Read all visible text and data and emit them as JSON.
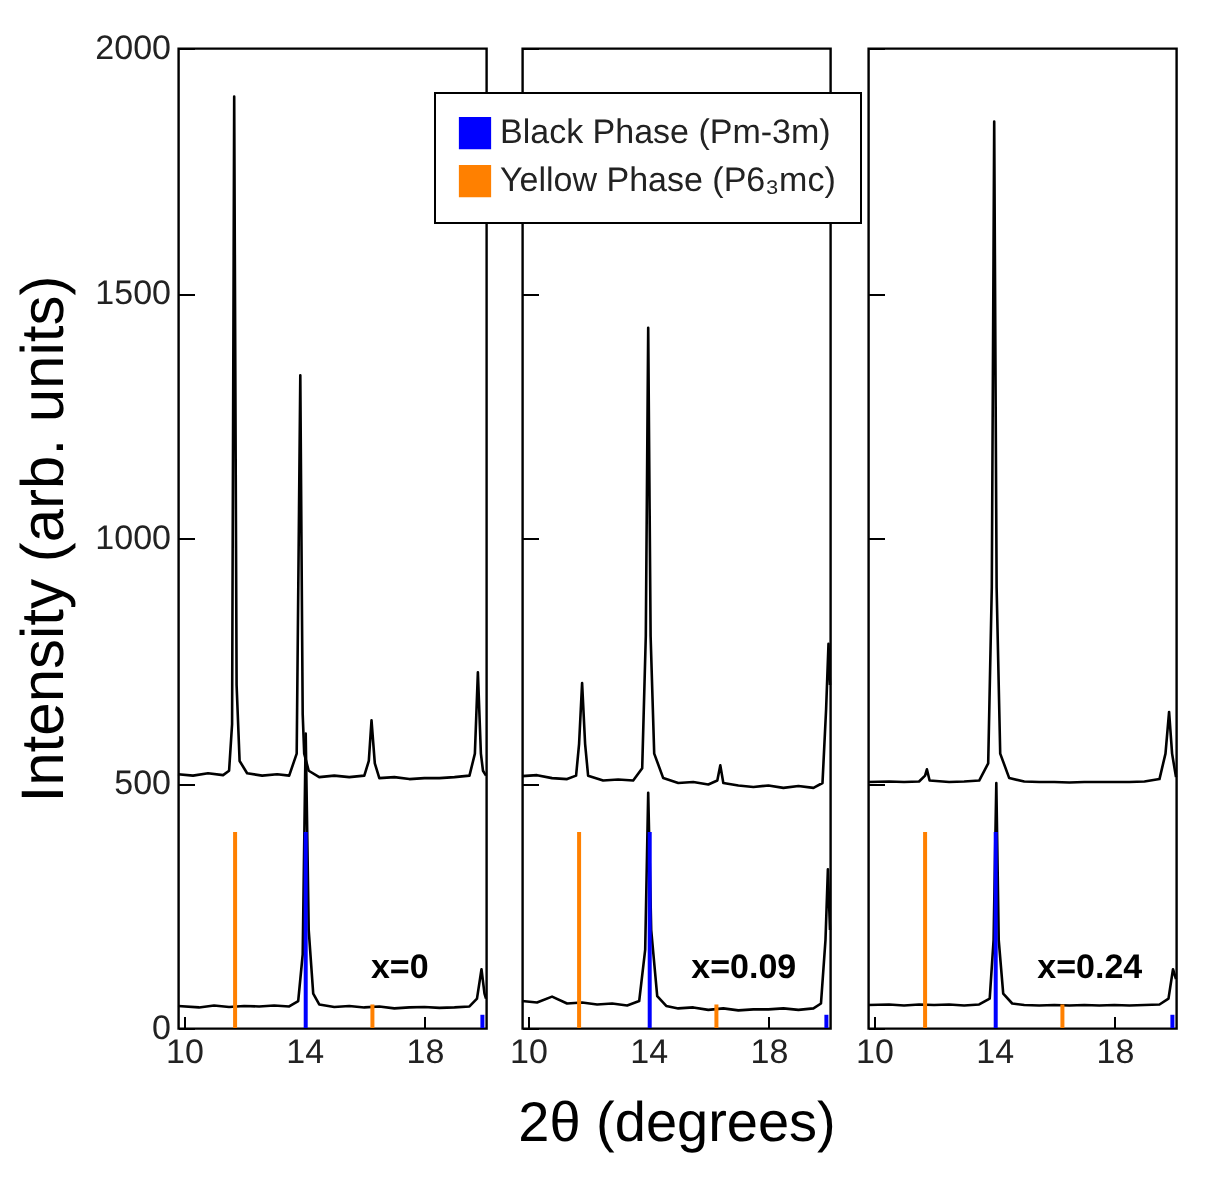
{
  "chart_data": [
    {
      "type": "line",
      "ylabel": "Intensity (arb. units)",
      "annotations": [
        "x=0"
      ],
      "legend": "top",
      "xlim": [
        9.8,
        20.05
      ],
      "xticks": [
        10,
        14,
        18
      ],
      "ylim": [
        0,
        2000
      ],
      "yticks": [
        0,
        500,
        1000,
        1500,
        2000
      ],
      "series": [
        {
          "color": "#000000",
          "x": [
            9.8,
            10.3,
            10.8,
            11.3,
            11.5,
            11.6,
            11.67,
            11.75,
            11.85,
            12.1,
            12.6,
            13.1,
            13.5,
            13.75,
            13.87,
            13.95,
            14.0,
            14.15,
            14.5,
            15.0,
            15.5,
            16.0,
            16.15,
            16.24,
            16.35,
            16.5,
            17.0,
            17.5,
            18.0,
            18.5,
            19.0,
            19.5,
            19.68,
            19.78,
            19.88,
            19.95,
            20.05
          ],
          "values": [
            518,
            515,
            520,
            516,
            525,
            620,
            1901,
            700,
            545,
            520,
            515,
            518,
            515,
            560,
            1332,
            640,
            560,
            525,
            512,
            515,
            512,
            515,
            545,
            628,
            540,
            510,
            512,
            508,
            510,
            510,
            512,
            515,
            560,
            726,
            560,
            525,
            515
          ]
        },
        {
          "color": "#000000",
          "x": [
            9.8,
            10.5,
            11.0,
            11.5,
            12.0,
            12.5,
            13.0,
            13.5,
            13.8,
            13.95,
            14.05,
            14.15,
            14.3,
            14.5,
            15.0,
            15.5,
            16.0,
            16.5,
            17.0,
            17.5,
            18.0,
            18.5,
            19.0,
            19.5,
            19.75,
            19.9,
            20.0,
            20.05
          ],
          "values": [
            45,
            42,
            46,
            43,
            45,
            44,
            46,
            44,
            55,
            150,
            601,
            200,
            70,
            48,
            43,
            45,
            42,
            44,
            40,
            42,
            43,
            41,
            42,
            44,
            60,
            120,
            70,
            60
          ]
        },
        {
          "type": "bar",
          "name": "Black Phase (Pm-3m)",
          "color": "#0000ff",
          "x": [
            14.05,
            19.93
          ],
          "values": [
            400,
            27
          ]
        },
        {
          "type": "bar",
          "name": "Yellow Phase (P6₃mc)",
          "color": "#ff8000",
          "x": [
            11.7,
            16.27
          ],
          "values": [
            400,
            48
          ]
        }
      ]
    },
    {
      "type": "line",
      "xlabel": "2θ (degrees)",
      "annotations": [
        "x=0.09"
      ],
      "tick_labels": "x",
      "xlim": [
        9.8,
        20.05
      ],
      "xticks": [
        10,
        14,
        18
      ],
      "ylim": [
        0,
        2000
      ],
      "yticks": [
        0,
        500,
        1000,
        1500,
        2000
      ],
      "series": [
        {
          "color": "#000000",
          "x": [
            9.8,
            10.3,
            10.8,
            11.3,
            11.6,
            11.7,
            11.8,
            11.9,
            12.0,
            12.5,
            13.0,
            13.5,
            13.8,
            13.92,
            14.0,
            14.08,
            14.2,
            14.5,
            15.0,
            15.5,
            16.0,
            16.3,
            16.4,
            16.5,
            17.0,
            17.5,
            18.0,
            18.5,
            19.0,
            19.5,
            19.8,
            19.92,
            20.0,
            20.05
          ],
          "values": [
            514,
            516,
            510,
            508,
            515,
            580,
            704,
            580,
            515,
            505,
            507,
            505,
            530,
            800,
            1429,
            800,
            560,
            510,
            500,
            502,
            497,
            505,
            536,
            500,
            495,
            492,
            495,
            490,
            494,
            490,
            500,
            650,
            784,
            700
          ]
        },
        {
          "color": "#000000",
          "x": [
            9.8,
            10.3,
            10.8,
            11.3,
            11.8,
            12.3,
            12.8,
            13.3,
            13.7,
            13.9,
            14.0,
            14.1,
            14.3,
            14.6,
            15.0,
            15.5,
            16.0,
            16.5,
            17.0,
            17.5,
            18.0,
            18.5,
            19.0,
            19.5,
            19.75,
            19.9,
            19.98,
            20.05
          ],
          "values": [
            55,
            52,
            64,
            50,
            52,
            48,
            50,
            46,
            55,
            160,
            480,
            200,
            65,
            45,
            40,
            42,
            37,
            40,
            36,
            38,
            38,
            40,
            37,
            40,
            50,
            180,
            324,
            200
          ]
        },
        {
          "type": "bar",
          "color": "#0000ff",
          "x": [
            14.05,
            19.93
          ],
          "values": [
            400,
            27
          ]
        },
        {
          "type": "bar",
          "color": "#ff8000",
          "x": [
            11.7,
            16.27
          ],
          "values": [
            400,
            48
          ]
        }
      ]
    },
    {
      "type": "line",
      "annotations": [
        "x=0.24"
      ],
      "tick_labels": "x",
      "xlim": [
        9.8,
        20.05
      ],
      "xticks": [
        10,
        14,
        18
      ],
      "ylim": [
        0,
        2000
      ],
      "yticks": [
        0,
        500,
        1000,
        1500,
        2000
      ],
      "series": [
        {
          "color": "#000000",
          "x": [
            9.8,
            10.5,
            11.0,
            11.5,
            11.7,
            11.76,
            11.85,
            12.5,
            13.0,
            13.5,
            13.8,
            13.92,
            14.0,
            14.08,
            14.2,
            14.5,
            15.0,
            15.5,
            16.0,
            16.5,
            17.0,
            17.5,
            18.0,
            18.5,
            19.0,
            19.5,
            19.7,
            19.82,
            19.92,
            20.05
          ],
          "values": [
            502,
            503,
            502,
            503,
            515,
            528,
            505,
            502,
            503,
            505,
            540,
            900,
            1850,
            900,
            560,
            510,
            503,
            502,
            502,
            501,
            502,
            502,
            502,
            502,
            503,
            508,
            560,
            645,
            560,
            512
          ]
        },
        {
          "color": "#000000",
          "x": [
            9.8,
            10.5,
            11.0,
            11.5,
            12.0,
            12.5,
            13.0,
            13.5,
            13.85,
            13.98,
            14.07,
            14.15,
            14.3,
            14.6,
            15.0,
            15.5,
            16.0,
            16.5,
            17.0,
            17.5,
            18.0,
            18.5,
            19.0,
            19.5,
            19.8,
            19.95,
            20.05
          ],
          "values": [
            47,
            48,
            46,
            48,
            47,
            48,
            46,
            48,
            60,
            180,
            500,
            180,
            70,
            50,
            47,
            46,
            47,
            46,
            47,
            46,
            47,
            46,
            47,
            48,
            60,
            120,
            100
          ]
        },
        {
          "type": "bar",
          "color": "#0000ff",
          "x": [
            14.05,
            19.93
          ],
          "values": [
            400,
            27
          ]
        },
        {
          "type": "bar",
          "color": "#ff8000",
          "x": [
            11.7,
            16.27
          ],
          "values": [
            400,
            48
          ]
        }
      ]
    }
  ]
}
